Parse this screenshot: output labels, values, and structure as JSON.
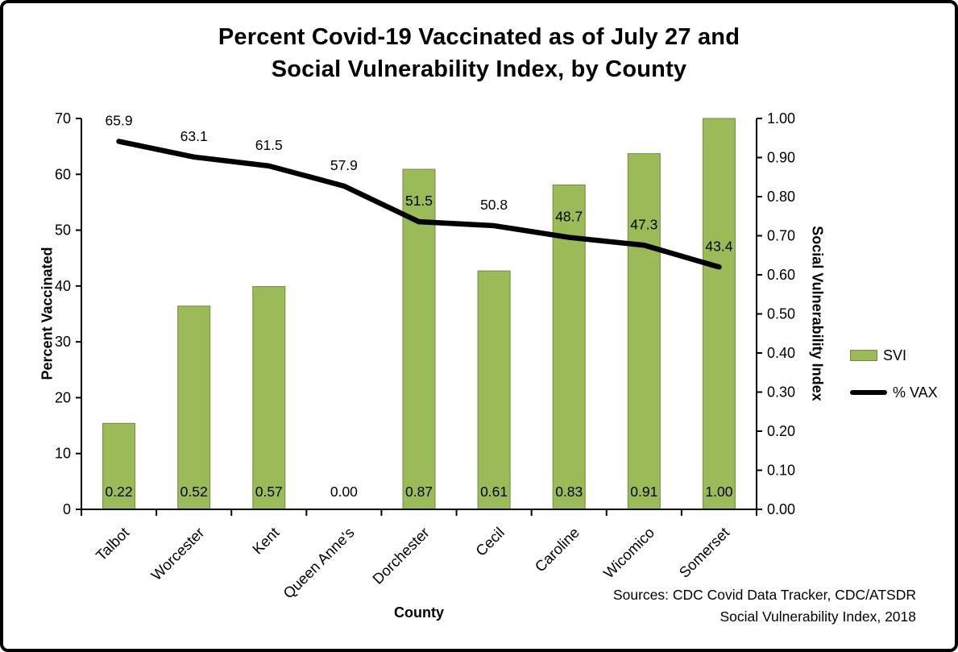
{
  "title_line1": "Percent Covid-19 Vaccinated as of July 27 and",
  "title_line2": "Social Vulnerability Index, by County",
  "axes": {
    "left_label": "Percent Vaccinated",
    "right_label": "Social Vulnerability Index",
    "x_label": "County"
  },
  "legend": {
    "svi_label": "SVI",
    "vax_label": "% VAX"
  },
  "source_line1": "Sources: CDC Covid Data Tracker, CDC/ATSDR",
  "source_line2": "Social Vulnerability Index, 2018",
  "colors": {
    "bar": "#9BBB59",
    "bar_border": "#71893F",
    "line": "#000000",
    "axis": "#000000"
  },
  "chart_data": {
    "type": "bar+line",
    "title": "Percent Covid-19 Vaccinated as of July 27 and Social Vulnerability Index, by County",
    "xlabel": "County",
    "ylabel_left": "Percent Vaccinated",
    "ylabel_right": "Social Vulnerability Index",
    "legend_position": "right",
    "grid": false,
    "categories": [
      "Talbot",
      "Worcester",
      "Kent",
      "Queen Anne's",
      "Dorchester",
      "Cecil",
      "Caroline",
      "Wicomico",
      "Somerset"
    ],
    "left_axis": {
      "min": 0,
      "max": 70,
      "step": 10,
      "decimals": 0
    },
    "right_axis": {
      "min": 0,
      "max": 1.0,
      "step": 0.1,
      "decimals": 2
    },
    "series": [
      {
        "name": "SVI",
        "type": "bar",
        "axis": "right",
        "label_decimals": 2,
        "values": [
          0.22,
          0.52,
          0.57,
          0.0,
          0.87,
          0.61,
          0.83,
          0.91,
          1.0
        ]
      },
      {
        "name": "% VAX",
        "type": "line",
        "axis": "left",
        "label_decimals": 1,
        "values": [
          65.9,
          63.1,
          61.5,
          57.9,
          51.5,
          50.8,
          48.7,
          47.3,
          43.4
        ]
      }
    ]
  }
}
